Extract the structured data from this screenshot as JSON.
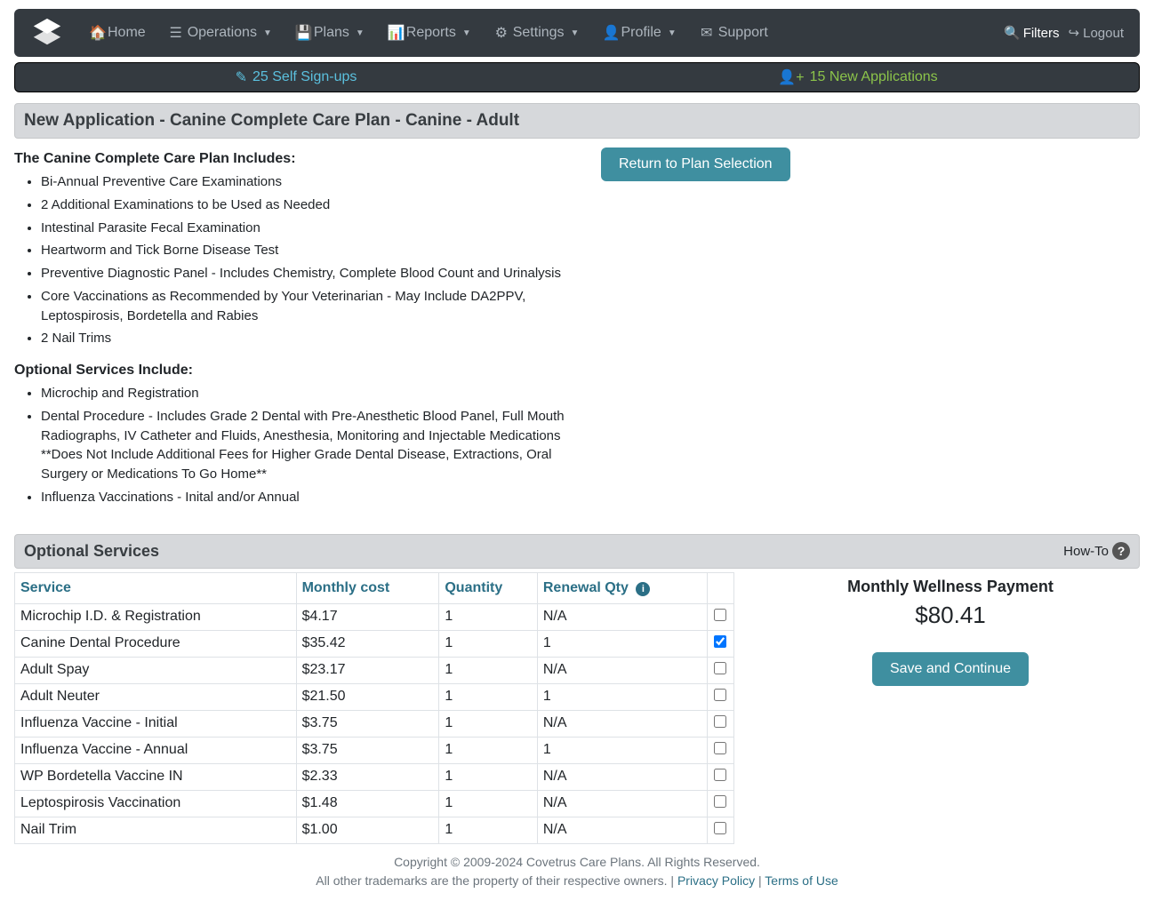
{
  "nav": {
    "home": "Home",
    "operations": "Operations",
    "plans": "Plans",
    "reports": "Reports",
    "settings": "Settings",
    "profile": "Profile",
    "support": "Support",
    "filters": "Filters",
    "logout": "Logout"
  },
  "stats": {
    "signups": "25 Self Sign-ups",
    "apps": "15 New Applications"
  },
  "page_title": "New Application - Canine Complete Care Plan - Canine - Adult",
  "return_btn": "Return to Plan Selection",
  "includes_heading": "The Canine Complete Care Plan Includes:",
  "includes": [
    "Bi-Annual Preventive Care Examinations",
    "2 Additional Examinations to be Used as Needed",
    "Intestinal Parasite Fecal Examination",
    "Heartworm and Tick Borne Disease Test",
    "Preventive Diagnostic Panel - Includes Chemistry, Complete Blood Count and Urinalysis",
    "Core Vaccinations as Recommended by Your Veterinarian - May Include DA2PPV, Leptospirosis, Bordetella and Rabies",
    "2 Nail Trims"
  ],
  "optional_heading": "Optional Services Include:",
  "optional_includes": [
    "Microchip and Registration",
    "Dental Procedure - Includes Grade 2 Dental with Pre-Anesthetic Blood Panel, Full Mouth Radiographs, IV Catheter and Fluids, Anesthesia, Monitoring and Injectable Medications **Does Not Include Additional Fees for Higher Grade Dental Disease, Extractions, Oral Surgery or Medications To Go Home**",
    "Influenza Vaccinations - Inital and/or Annual"
  ],
  "section": {
    "title": "Optional Services",
    "howto": "How-To"
  },
  "table": {
    "headers": {
      "service": "Service",
      "cost": "Monthly cost",
      "qty": "Quantity",
      "renewal": "Renewal Qty"
    },
    "rows": [
      {
        "service": "Microchip I.D. & Registration",
        "cost": "$4.17",
        "qty": "1",
        "renewal": "N/A",
        "checked": false
      },
      {
        "service": "Canine Dental Procedure",
        "cost": "$35.42",
        "qty": "1",
        "renewal": "1",
        "checked": true
      },
      {
        "service": "Adult Spay",
        "cost": "$23.17",
        "qty": "1",
        "renewal": "N/A",
        "checked": false
      },
      {
        "service": "Adult Neuter",
        "cost": "$21.50",
        "qty": "1",
        "renewal": "1",
        "checked": false
      },
      {
        "service": "Influenza Vaccine - Initial",
        "cost": "$3.75",
        "qty": "1",
        "renewal": "N/A",
        "checked": false
      },
      {
        "service": "Influenza Vaccine - Annual",
        "cost": "$3.75",
        "qty": "1",
        "renewal": "1",
        "checked": false
      },
      {
        "service": "WP Bordetella Vaccine IN",
        "cost": "$2.33",
        "qty": "1",
        "renewal": "N/A",
        "checked": false
      },
      {
        "service": "Leptospirosis Vaccination",
        "cost": "$1.48",
        "qty": "1",
        "renewal": "N/A",
        "checked": false
      },
      {
        "service": "Nail Trim",
        "cost": "$1.00",
        "qty": "1",
        "renewal": "N/A",
        "checked": false
      }
    ]
  },
  "payment": {
    "title": "Monthly Wellness Payment",
    "amount": "$80.41",
    "save": "Save and Continue"
  },
  "footer": {
    "line1": "Copyright © 2009-2024 Covetrus Care Plans. All Rights Reserved.",
    "line2a": "All other trademarks are the property of their respective owners. | ",
    "privacy": "Privacy Policy",
    "sep": " | ",
    "terms": "Terms of Use"
  },
  "colors": {
    "navbar_bg": "#343a40",
    "accent": "#3f8fa0",
    "header_bg": "#d6d8db",
    "link": "#2b6f86",
    "signup": "#5bc0de",
    "apps": "#8bc34a"
  }
}
